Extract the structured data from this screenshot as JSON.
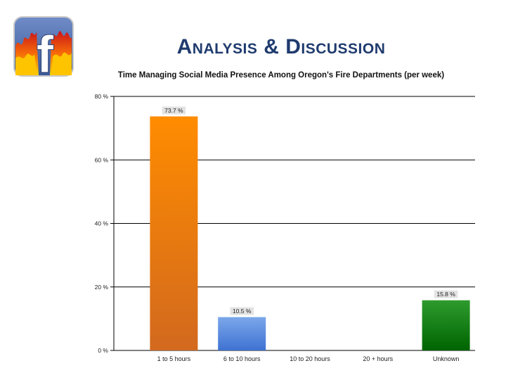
{
  "slide": {
    "title": "Analysis & Discussion",
    "logo_letter": "f",
    "logo_icon": "facebook-fire-logo"
  },
  "colors": {
    "title": "#1F3B6E",
    "gridline": "#000000",
    "label_bg": "#E3E3E3"
  },
  "chart_data": {
    "type": "bar",
    "title": "Time Managing Social Media Presence Among Oregon's Fire Departments (per week)",
    "xlabel": "",
    "ylabel": "",
    "categories": [
      "1 to 5 hours",
      "6 to 10 hours",
      "10 to 20 hours",
      "20 + hours",
      "Unknown"
    ],
    "values": [
      73.7,
      10.5,
      0,
      0,
      15.8
    ],
    "data_labels": [
      "73.7 %",
      "10.5 %",
      "",
      "",
      "15.8 %"
    ],
    "bar_colors": [
      [
        "#FF8C00",
        "#D2691E"
      ],
      [
        "#7BA7EA",
        "#3F72D2"
      ],
      [
        "#999999",
        "#777777"
      ],
      [
        "#999999",
        "#777777"
      ],
      [
        "#2E9B2E",
        "#006400"
      ]
    ],
    "ylim": [
      0,
      80
    ],
    "y_ticks": [
      0,
      20,
      40,
      60,
      80
    ],
    "y_tick_labels": [
      "0 %",
      "20 %",
      "40 %",
      "60 %",
      "80 %"
    ],
    "grid": true,
    "legend": "none"
  }
}
